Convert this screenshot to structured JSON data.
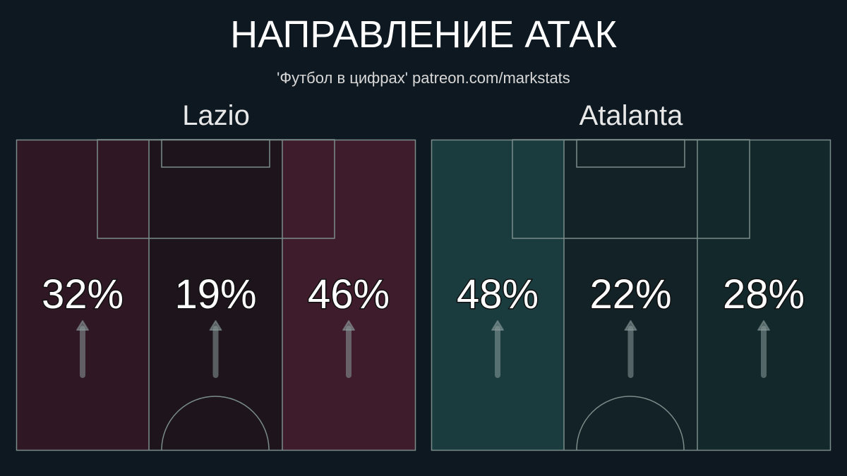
{
  "title": "НАПРАВЛЕНИЕ АТАК",
  "subtitle": "'Футбол в цифрах' patreon.com/markstats",
  "line_color": "#7a8c8a",
  "chart_data": {
    "type": "heatmap",
    "categories": [
      "left",
      "center",
      "right"
    ],
    "teams": [
      {
        "name": "Lazio",
        "values": [
          32,
          19,
          46
        ],
        "labels": [
          "32%",
          "19%",
          "46%"
        ],
        "colors": [
          "#2f1824",
          "#1e141c",
          "#3e1c2c"
        ]
      },
      {
        "name": "Atalanta",
        "values": [
          48,
          22,
          28
        ],
        "labels": [
          "48%",
          "22%",
          "28%"
        ],
        "colors": [
          "#1a3c3e",
          "#122226",
          "#13282a"
        ]
      }
    ]
  }
}
